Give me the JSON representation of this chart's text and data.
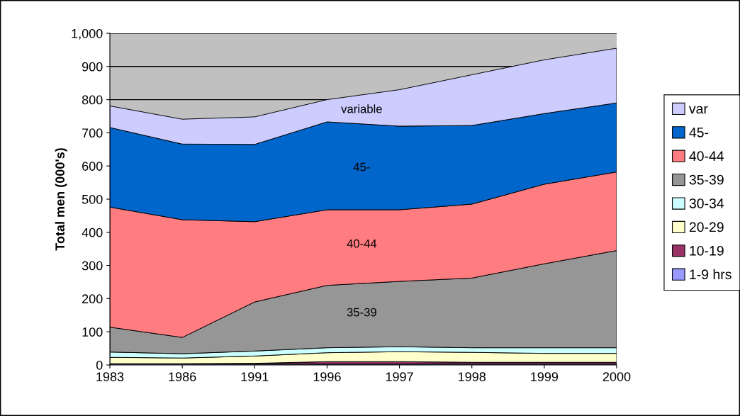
{
  "chart_data": {
    "type": "area",
    "stacked": true,
    "ylabel": "Total men (000's)",
    "categories": [
      "1983",
      "1986",
      "1991",
      "1996",
      "1997",
      "1998",
      "1999",
      "2000"
    ],
    "series": [
      {
        "name": "1-9 hrs",
        "color": "#9999ff",
        "values": [
          3,
          3,
          3,
          3,
          3,
          3,
          3,
          3
        ]
      },
      {
        "name": "10-19",
        "color": "#993366",
        "values": [
          1,
          1,
          2,
          7,
          7,
          5,
          5,
          5
        ]
      },
      {
        "name": "20-29",
        "color": "#ffffcc",
        "values": [
          19,
          17,
          22,
          27,
          30,
          30,
          27,
          27
        ]
      },
      {
        "name": "30-34",
        "color": "#ccffff",
        "values": [
          16,
          13,
          15,
          15,
          15,
          14,
          17,
          17
        ]
      },
      {
        "name": "35-39",
        "color": "#969696",
        "values": [
          75,
          49,
          148,
          188,
          197,
          210,
          253,
          293
        ]
      },
      {
        "name": "40-44",
        "color": "#ff7c80",
        "values": [
          362,
          355,
          242,
          228,
          216,
          223,
          240,
          237
        ]
      },
      {
        "name": "45-",
        "color": "#0066cc",
        "values": [
          240,
          228,
          233,
          265,
          252,
          237,
          213,
          208
        ]
      },
      {
        "name": "var",
        "color": "#ccccff",
        "values": [
          65,
          75,
          83,
          67,
          110,
          153,
          162,
          165
        ]
      }
    ],
    "ylim": [
      0,
      1000
    ],
    "yticks": [
      0,
      100,
      200,
      300,
      400,
      500,
      600,
      700,
      800,
      900,
      {
        "value": 1000,
        "label": "1,000"
      }
    ],
    "grid": "y",
    "legend": "right",
    "annotations": [
      "variable",
      "45-",
      "40-44",
      "35-39"
    ]
  }
}
